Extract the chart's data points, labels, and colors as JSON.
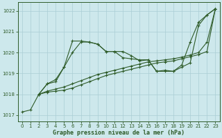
{
  "xlabel": "Graphe pression niveau de la mer (hPa)",
  "ylabel": "",
  "background_color": "#cde8ec",
  "grid_color": "#aacdd4",
  "line_color": "#2d5a27",
  "xlim": [
    -0.5,
    23.5
  ],
  "ylim": [
    1016.7,
    1022.4
  ],
  "yticks": [
    1017,
    1018,
    1019,
    1020,
    1021,
    1022
  ],
  "xticks": [
    0,
    1,
    2,
    3,
    4,
    5,
    6,
    7,
    8,
    9,
    10,
    11,
    12,
    13,
    14,
    15,
    16,
    17,
    18,
    19,
    20,
    21,
    22,
    23
  ],
  "series": [
    {
      "x": [
        0,
        1,
        2,
        3,
        4,
        5,
        6,
        7,
        8,
        9,
        10,
        11,
        12,
        13,
        14,
        15,
        16,
        17,
        18,
        19,
        20,
        21,
        22,
        23
      ],
      "y": [
        1017.15,
        1017.25,
        1018.0,
        1018.1,
        1018.15,
        1018.2,
        1018.3,
        1018.45,
        1018.6,
        1018.75,
        1018.9,
        1019.0,
        1019.1,
        1019.2,
        1019.3,
        1019.4,
        1019.5,
        1019.55,
        1019.6,
        1019.7,
        1019.8,
        1019.9,
        1020.05,
        1022.1
      ]
    },
    {
      "x": [
        2,
        3,
        4,
        5,
        6,
        7,
        8,
        9,
        10,
        11,
        12,
        13,
        14,
        15,
        16,
        17,
        18,
        19,
        20,
        21,
        22,
        23
      ],
      "y": [
        1018.0,
        1018.15,
        1018.25,
        1018.35,
        1018.5,
        1018.65,
        1018.8,
        1018.95,
        1019.05,
        1019.15,
        1019.25,
        1019.35,
        1019.45,
        1019.55,
        1019.6,
        1019.65,
        1019.7,
        1019.78,
        1019.88,
        1020.0,
        1020.5,
        1022.1
      ]
    },
    {
      "x": [
        2,
        3,
        4,
        5,
        6,
        7,
        8,
        9,
        10,
        11,
        12,
        13,
        14,
        15,
        16,
        17,
        18,
        19,
        20,
        21,
        22,
        23
      ],
      "y": [
        1018.0,
        1018.5,
        1018.6,
        1019.3,
        1020.55,
        1020.55,
        1020.5,
        1020.4,
        1020.05,
        1020.05,
        1019.75,
        1019.7,
        1019.65,
        1019.65,
        1019.1,
        1019.1,
        1019.1,
        1019.3,
        1019.5,
        1021.3,
        1021.8,
        1022.1
      ]
    },
    {
      "x": [
        2,
        3,
        4,
        5,
        6,
        7,
        8,
        9,
        10,
        11,
        12,
        13,
        14,
        15,
        16,
        17,
        18,
        19,
        20,
        21,
        22,
        23
      ],
      "y": [
        1018.0,
        1018.5,
        1018.7,
        1019.3,
        1020.0,
        1020.5,
        1020.5,
        1020.4,
        1020.05,
        1020.05,
        1020.05,
        1019.85,
        1019.6,
        1019.65,
        1019.1,
        1019.15,
        1019.1,
        1019.4,
        1020.5,
        1021.45,
        1021.8,
        1022.1
      ]
    }
  ]
}
